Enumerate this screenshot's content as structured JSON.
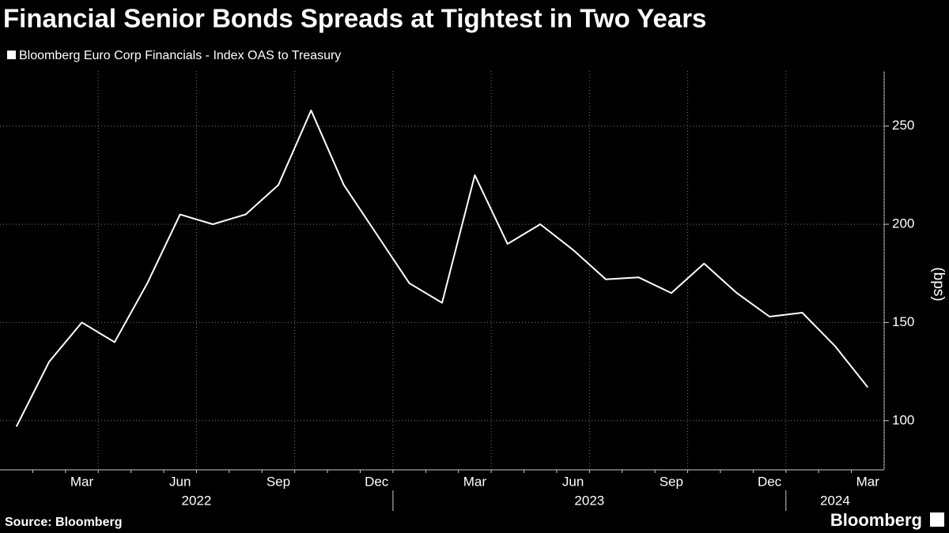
{
  "chart_data": {
    "type": "line",
    "title": "Financial Senior Bonds Spreads at Tightest in Two Years",
    "x": [
      "2022-01",
      "2022-02",
      "2022-03",
      "2022-04",
      "2022-05",
      "2022-06",
      "2022-07",
      "2022-08",
      "2022-09",
      "2022-10",
      "2022-11",
      "2022-12",
      "2023-01",
      "2023-02",
      "2023-03",
      "2023-04",
      "2023-05",
      "2023-06",
      "2023-07",
      "2023-08",
      "2023-09",
      "2023-10",
      "2023-11",
      "2023-12",
      "2024-01",
      "2024-02",
      "2024-03"
    ],
    "series": [
      {
        "name": "Bloomberg Euro Corp Financials - Index OAS to Treasury",
        "color": "#ffffff",
        "values": [
          97,
          130,
          150,
          140,
          170,
          205,
          200,
          205,
          220,
          258,
          220,
          195,
          170,
          160,
          225,
          190,
          200,
          187,
          172,
          173,
          165,
          180,
          165,
          153,
          155,
          138,
          117
        ]
      }
    ],
    "xlim": [
      "2022-01",
      "2024-03"
    ],
    "xticks": [
      {
        "value": "2022-03",
        "label": "Mar"
      },
      {
        "value": "2022-06",
        "label": "Jun"
      },
      {
        "value": "2022-09",
        "label": "Sep"
      },
      {
        "value": "2022-12",
        "label": "Dec"
      },
      {
        "value": "2023-03",
        "label": "Mar"
      },
      {
        "value": "2023-06",
        "label": "Jun"
      },
      {
        "value": "2023-09",
        "label": "Sep"
      },
      {
        "value": "2023-12",
        "label": "Dec"
      },
      {
        "value": "2024-03",
        "label": "Mar"
      }
    ],
    "years": [
      "2022",
      "2023",
      "2024"
    ],
    "ylim": [
      75,
      278
    ],
    "yticks": [
      100,
      150,
      200,
      250
    ],
    "y_label": "(bps)",
    "grid": true,
    "source": "Source: Bloomberg",
    "brand": "Bloomberg"
  }
}
